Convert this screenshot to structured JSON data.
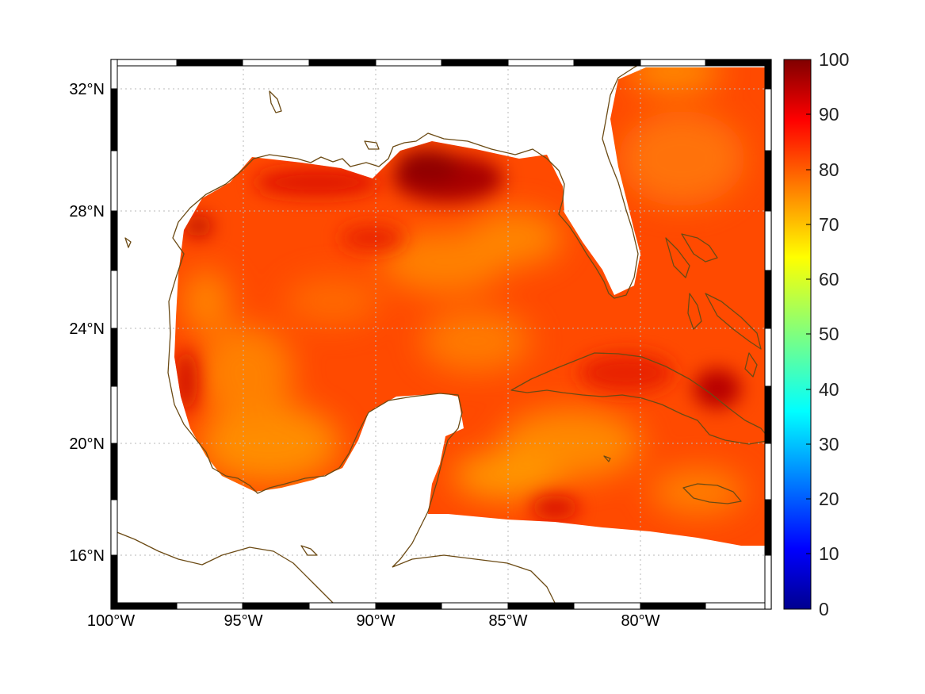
{
  "map": {
    "lon_labels": [
      "100°W",
      "95°W",
      "90°W",
      "85°W",
      "80°W"
    ],
    "lat_labels": [
      "32°N",
      "28°N",
      "24°N",
      "20°N",
      "16°N"
    ],
    "field_colors": {
      "background": "#ff4a00",
      "warm_orange": "#ff8a00",
      "yellow_orange": "#ffa800",
      "dark_red": "#b40000",
      "deep_red": "#d81000"
    },
    "coast_color": "#6b4a14",
    "grid_style": "dotted"
  },
  "colorbar": {
    "labels": [
      "100",
      "90",
      "80",
      "70",
      "60",
      "50",
      "40",
      "30",
      "20",
      "10",
      "0"
    ],
    "range": [
      0,
      100
    ],
    "colormap": "jet"
  }
}
